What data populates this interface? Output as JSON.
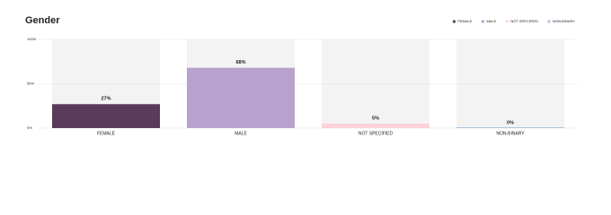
{
  "chart_data": {
    "type": "bar",
    "title": "Gender",
    "categories": [
      "FEMALE",
      "MALE",
      "NOT SPECIFIED",
      "NON-BINARY"
    ],
    "values": [
      27,
      68,
      5,
      0
    ],
    "value_labels": [
      "27%",
      "68%",
      "5%",
      "0%"
    ],
    "colors": [
      "#5b3b5c",
      "#b9a1cd",
      "#ffd1d8",
      "#a9c6e4"
    ],
    "ylim": [
      0,
      100
    ],
    "yticks": [
      {
        "value": 0,
        "label": "0%"
      },
      {
        "value": 50,
        "label": "50%"
      },
      {
        "value": 100,
        "label": "100%"
      }
    ],
    "grid": true,
    "legend": "top-right"
  }
}
